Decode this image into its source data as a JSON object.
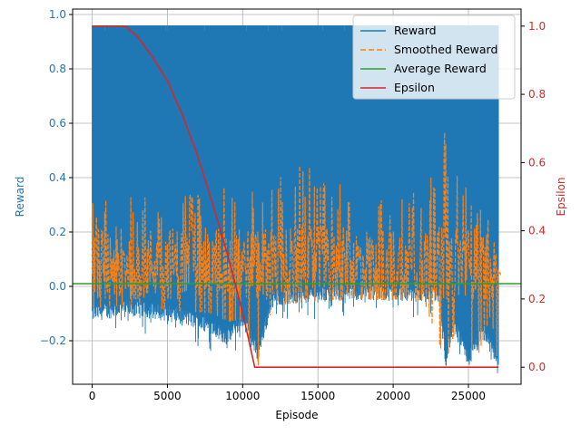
{
  "chart_data": {
    "type": "line",
    "xlabel": "Episode",
    "ylabel_left": "Reward",
    "ylabel_right": "Epsilon",
    "xlim": [
      -1300,
      28500
    ],
    "ylim_left": [
      -0.36,
      1.02
    ],
    "ylim_right": [
      -0.05,
      1.05
    ],
    "x_ticks": [
      0,
      5000,
      10000,
      15000,
      20000,
      25000
    ],
    "y_ticks_left": [
      -0.2,
      0.0,
      0.2,
      0.4,
      0.6,
      0.8,
      1.0
    ],
    "y_ticks_right": [
      0.0,
      0.2,
      0.4,
      0.6,
      0.8,
      1.0
    ],
    "grid": true,
    "legend_position": "top-right",
    "colors": {
      "reward": "#1f77b4",
      "smoothed": "#ff7f0e",
      "average": "#2ca02c",
      "epsilon": "#d62728",
      "left_axis": "#1f77b4",
      "right_axis": "#d62728"
    },
    "series": [
      {
        "name": "Reward",
        "axis": "left",
        "style": "solid",
        "color": "#1f77b4",
        "description_band": {
          "x_range": [
            0,
            27000
          ],
          "upper": 0.96,
          "lower": [
            [
              0,
              -0.13
            ],
            [
              2000,
              -0.11
            ],
            [
              4000,
              -0.12
            ],
            [
              6000,
              -0.14
            ],
            [
              8000,
              -0.18
            ],
            [
              9000,
              -0.22
            ],
            [
              10000,
              -0.15
            ],
            [
              11000,
              -0.28
            ],
            [
              12000,
              -0.07
            ],
            [
              18000,
              -0.05
            ],
            [
              23000,
              -0.06
            ],
            [
              23500,
              -0.3
            ],
            [
              24000,
              -0.17
            ],
            [
              25000,
              -0.3
            ],
            [
              26000,
              -0.2
            ],
            [
              27000,
              -0.3
            ]
          ]
        }
      },
      {
        "name": "Smoothed Reward",
        "axis": "left",
        "style": "dashed",
        "color": "#ff7f0e",
        "envelope": [
          [
            0,
            -0.08,
            0.33
          ],
          [
            2000,
            -0.07,
            0.33
          ],
          [
            4000,
            -0.08,
            0.33
          ],
          [
            6000,
            -0.09,
            0.34
          ],
          [
            8000,
            -0.1,
            0.35
          ],
          [
            9000,
            -0.13,
            0.43
          ],
          [
            10000,
            -0.12,
            0.38
          ],
          [
            11000,
            -0.3,
            0.35
          ],
          [
            12000,
            -0.07,
            0.42
          ],
          [
            14000,
            -0.06,
            0.45
          ],
          [
            16000,
            -0.05,
            0.4
          ],
          [
            18000,
            -0.05,
            0.38
          ],
          [
            20000,
            -0.05,
            0.36
          ],
          [
            22000,
            -0.05,
            0.36
          ],
          [
            23500,
            -0.28,
            0.59
          ],
          [
            24500,
            -0.1,
            0.46
          ],
          [
            25500,
            -0.28,
            0.3
          ],
          [
            26500,
            -0.1,
            0.25
          ],
          [
            27000,
            -0.3,
            0.05
          ]
        ]
      },
      {
        "name": "Average Reward",
        "axis": "left",
        "style": "solid",
        "color": "#2ca02c",
        "value": 0.01
      },
      {
        "name": "Epsilon",
        "axis": "right",
        "style": "solid",
        "color": "#d62728",
        "x": [
          0,
          2200,
          3000,
          4000,
          5000,
          6000,
          7000,
          8000,
          9000,
          10000,
          10800,
          11000,
          27000
        ],
        "values": [
          1.0,
          1.0,
          0.97,
          0.91,
          0.84,
          0.74,
          0.62,
          0.48,
          0.33,
          0.16,
          0.0,
          0.0,
          0.0
        ]
      }
    ]
  }
}
